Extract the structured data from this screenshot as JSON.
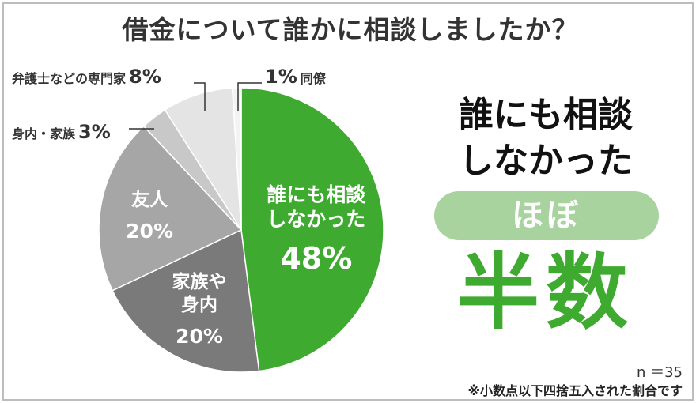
{
  "title": "借金について誰かに相談しましたか？",
  "chart_data": {
    "type": "pie",
    "title": "借金について誰かに相談しましたか？",
    "slices": [
      {
        "label_lines": [
          "誰にも相談",
          "しなかった"
        ],
        "value": 48,
        "display": "48%",
        "color": "#3eaa2f",
        "text_color": "#ffffff"
      },
      {
        "label_lines": [
          "家族や",
          "身内"
        ],
        "value": 20,
        "display": "20%",
        "color": "#7a7a7a",
        "text_color": "#ffffff"
      },
      {
        "label_lines": [
          "友人"
        ],
        "value": 20,
        "display": "20%",
        "color": "#a6a6a6",
        "text_color": "#ffffff"
      },
      {
        "label_lines": [
          "身内・家族"
        ],
        "value": 3,
        "display": "3%",
        "color": "#c8c8c8",
        "callout": true
      },
      {
        "label_lines": [
          "弁護士などの専門家"
        ],
        "value": 8,
        "display": "8%",
        "color": "#e4e4e4",
        "callout": true
      },
      {
        "label_lines": [
          "同僚"
        ],
        "value": 1,
        "display": "1%",
        "color": "#f3f3f3",
        "callout": true
      }
    ]
  },
  "headline_lines": [
    "誰にも相談",
    "しなかった"
  ],
  "pill_text": "ほぼ",
  "big_text": "半数",
  "n_label": "n ＝35",
  "footnote": "※小数点以下四捨五入された割合です"
}
